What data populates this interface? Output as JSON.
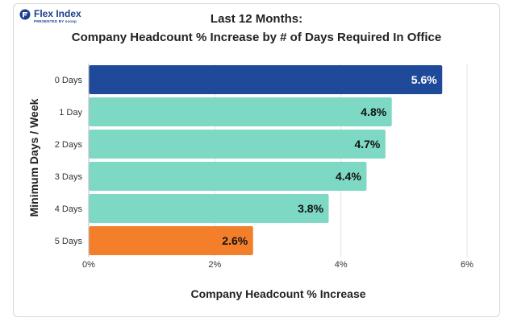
{
  "logo": {
    "name": "Flex Index",
    "tagline": "PRESENTED BY scoop"
  },
  "colors": {
    "navy": "#1f4a9a",
    "teal": "#7dd9c4",
    "orange": "#f47f2a"
  },
  "chart_data": {
    "type": "bar",
    "orientation": "horizontal",
    "title": "Last 12 Months:",
    "subtitle": "Company Headcount % Increase by # of Days Required In Office",
    "xlabel": "Company Headcount % Increase",
    "ylabel": "Minimum Days / Week",
    "categories": [
      "0 Days",
      "1 Day",
      "2 Days",
      "3 Days",
      "4 Days",
      "5 Days"
    ],
    "values": [
      5.6,
      4.8,
      4.7,
      4.4,
      3.8,
      2.6
    ],
    "value_labels": [
      "5.6%",
      "4.8%",
      "4.7%",
      "4.4%",
      "3.8%",
      "2.6%"
    ],
    "bar_colors": [
      "#1f4a9a",
      "#7dd9c4",
      "#7dd9c4",
      "#7dd9c4",
      "#7dd9c4",
      "#f47f2a"
    ],
    "xlim": [
      0,
      6
    ],
    "xticks": [
      0,
      2,
      4,
      6
    ],
    "xtick_labels": [
      "0%",
      "2%",
      "4%",
      "6%"
    ],
    "grid": "vertical"
  }
}
